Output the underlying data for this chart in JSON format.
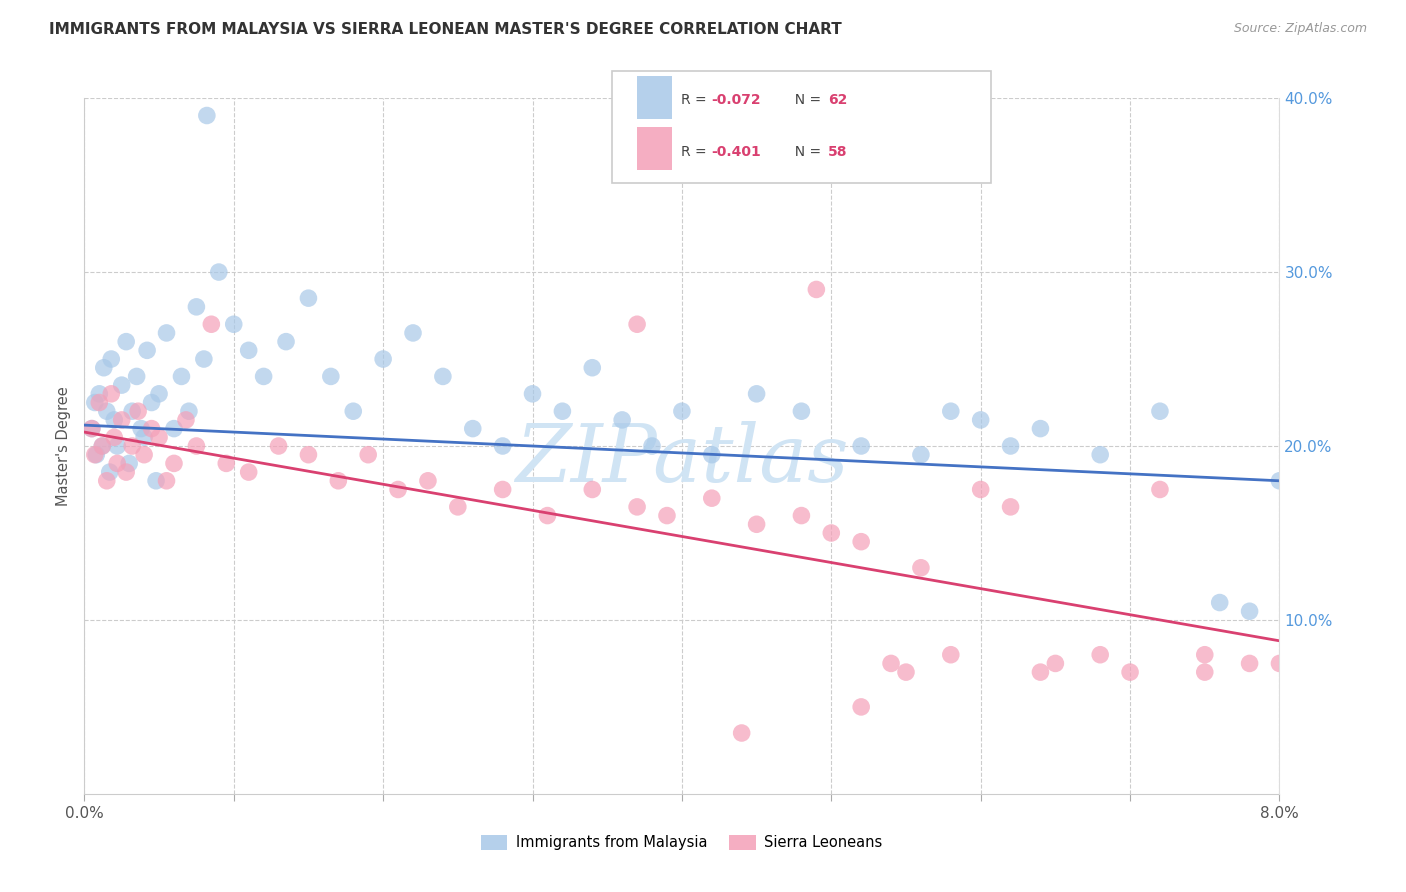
{
  "title": "IMMIGRANTS FROM MALAYSIA VS SIERRA LEONEAN MASTER'S DEGREE CORRELATION CHART",
  "source": "Source: ZipAtlas.com",
  "ylabel": "Master's Degree",
  "legend_labels": [
    "Immigrants from Malaysia",
    "Sierra Leoneans"
  ],
  "watermark": "ZIPatlas",
  "blue_R": -0.072,
  "blue_N": 62,
  "pink_R": -0.401,
  "pink_N": 58,
  "x_range": [
    0.0,
    8.0
  ],
  "y_range": [
    0.0,
    40.0
  ],
  "blue_color": "#a8c8e8",
  "pink_color": "#f4a0b8",
  "blue_line_color": "#4472c4",
  "pink_line_color": "#d94070",
  "background_color": "#ffffff",
  "grid_color": "#cccccc",
  "title_color": "#333333",
  "source_color": "#999999",
  "right_tick_color": "#5599dd",
  "watermark_color": "#d0e4f4",
  "blue_line_y0": 21.2,
  "blue_line_y1": 18.0,
  "pink_line_y0": 20.8,
  "pink_line_y1": 8.8,
  "blue_points_x": [
    0.05,
    0.07,
    0.08,
    0.1,
    0.12,
    0.13,
    0.15,
    0.17,
    0.18,
    0.2,
    0.22,
    0.25,
    0.28,
    0.3,
    0.32,
    0.35,
    0.38,
    0.4,
    0.42,
    0.45,
    0.48,
    0.5,
    0.55,
    0.6,
    0.65,
    0.7,
    0.75,
    0.8,
    0.9,
    1.0,
    1.1,
    1.2,
    1.35,
    1.5,
    1.65,
    1.8,
    2.0,
    2.2,
    2.4,
    2.6,
    2.8,
    3.0,
    3.2,
    3.4,
    3.6,
    3.8,
    4.0,
    4.2,
    4.5,
    4.8,
    5.2,
    5.6,
    5.8,
    6.0,
    6.2,
    6.4,
    6.8,
    7.2,
    7.6,
    7.8,
    8.0,
    0.82
  ],
  "blue_points_y": [
    21.0,
    22.5,
    19.5,
    23.0,
    20.0,
    24.5,
    22.0,
    18.5,
    25.0,
    21.5,
    20.0,
    23.5,
    26.0,
    19.0,
    22.0,
    24.0,
    21.0,
    20.5,
    25.5,
    22.5,
    18.0,
    23.0,
    26.5,
    21.0,
    24.0,
    22.0,
    28.0,
    25.0,
    30.0,
    27.0,
    25.5,
    24.0,
    26.0,
    28.5,
    24.0,
    22.0,
    25.0,
    26.5,
    24.0,
    21.0,
    20.0,
    23.0,
    22.0,
    24.5,
    21.5,
    20.0,
    22.0,
    19.5,
    23.0,
    22.0,
    20.0,
    19.5,
    22.0,
    21.5,
    20.0,
    21.0,
    19.5,
    22.0,
    11.0,
    10.5,
    18.0,
    39.0
  ],
  "pink_points_x": [
    0.05,
    0.07,
    0.1,
    0.12,
    0.15,
    0.18,
    0.2,
    0.22,
    0.25,
    0.28,
    0.32,
    0.36,
    0.4,
    0.45,
    0.5,
    0.55,
    0.6,
    0.68,
    0.75,
    0.85,
    0.95,
    1.1,
    1.3,
    1.5,
    1.7,
    1.9,
    2.1,
    2.3,
    2.5,
    2.8,
    3.1,
    3.4,
    3.7,
    3.9,
    4.2,
    4.5,
    4.8,
    5.0,
    5.2,
    5.4,
    5.6,
    5.8,
    6.0,
    6.2,
    6.5,
    6.8,
    7.0,
    7.2,
    7.5,
    7.8,
    8.0,
    4.9,
    3.7,
    5.5,
    4.4,
    5.2,
    6.4,
    7.5
  ],
  "pink_points_y": [
    21.0,
    19.5,
    22.5,
    20.0,
    18.0,
    23.0,
    20.5,
    19.0,
    21.5,
    18.5,
    20.0,
    22.0,
    19.5,
    21.0,
    20.5,
    18.0,
    19.0,
    21.5,
    20.0,
    27.0,
    19.0,
    18.5,
    20.0,
    19.5,
    18.0,
    19.5,
    17.5,
    18.0,
    16.5,
    17.5,
    16.0,
    17.5,
    27.0,
    16.0,
    17.0,
    15.5,
    16.0,
    15.0,
    14.5,
    7.5,
    13.0,
    8.0,
    17.5,
    16.5,
    7.5,
    8.0,
    7.0,
    17.5,
    8.0,
    7.5,
    7.5,
    29.0,
    16.5,
    7.0,
    3.5,
    5.0,
    7.0,
    7.0
  ]
}
